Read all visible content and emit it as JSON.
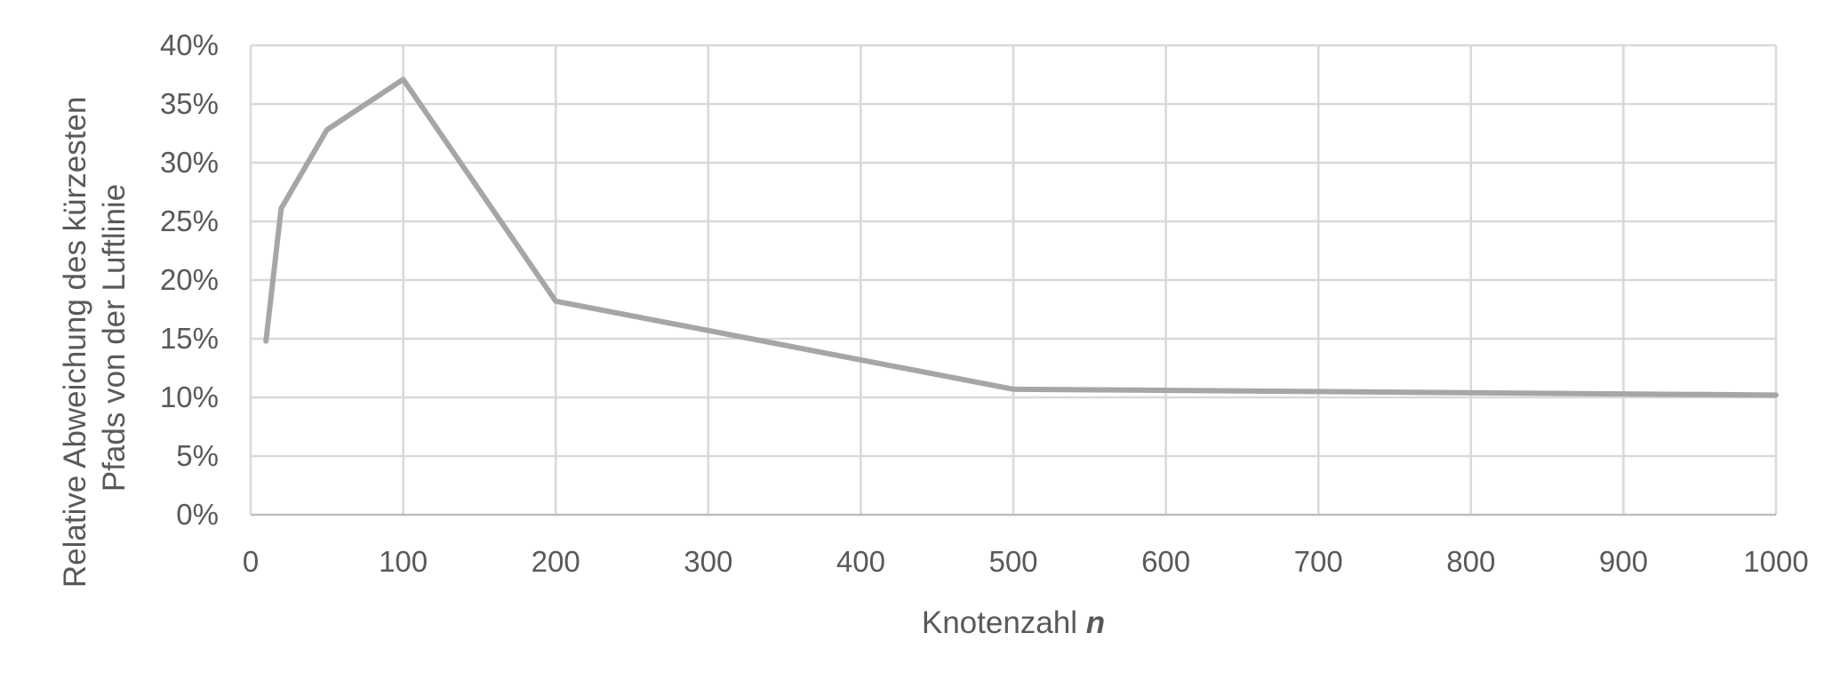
{
  "chart_data": {
    "type": "line",
    "x": [
      10,
      20,
      50,
      100,
      200,
      500,
      1000
    ],
    "series": [
      {
        "values": [
          14.8,
          26.1,
          32.8,
          37.1,
          18.2,
          10.7,
          10.2
        ]
      }
    ],
    "xlabel": "Knotenzahl",
    "xlabel_var": "n",
    "ylabel_lines": [
      "Relative Abweichung des kürzesten",
      "Pfads von der Luftlinie"
    ],
    "xlim": [
      0,
      1000
    ],
    "ylim": [
      0,
      40
    ],
    "x_ticks": [
      0,
      100,
      200,
      300,
      400,
      500,
      600,
      700,
      800,
      900,
      1000
    ],
    "x_tick_labels": [
      "0",
      "100",
      "200",
      "300",
      "400",
      "500",
      "600",
      "700",
      "800",
      "900",
      "1000"
    ],
    "y_ticks": [
      0,
      5,
      10,
      15,
      20,
      25,
      30,
      35,
      40
    ],
    "y_tick_labels": [
      "0%",
      "5%",
      "10%",
      "15%",
      "20%",
      "25%",
      "30%",
      "35%",
      "40%"
    ],
    "grid": true,
    "legend": "none",
    "line_color": "#a6a6a6",
    "grid_color": "#d9d9d9",
    "axis_color": "#bfbfbf",
    "text_color": "#595959"
  }
}
